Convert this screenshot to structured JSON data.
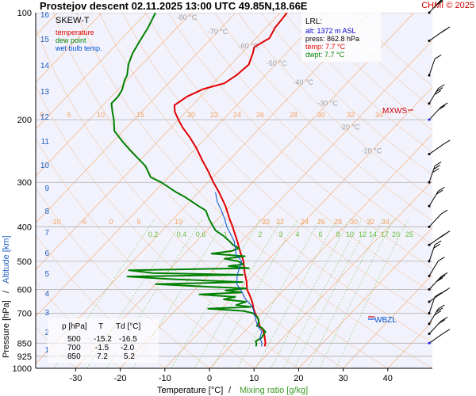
{
  "header": {
    "title": "Prostejov   descent   02.11.2025 13:00 UTC  49.85N,18.66E",
    "credit": "CHMI © 2025"
  },
  "legend": {
    "title": "SKEW-T",
    "items": [
      {
        "label": "temperature",
        "color": "#e00000"
      },
      {
        "label": "dew point",
        "color": "#008000"
      },
      {
        "label": "wet bulb temp.",
        "color": "#0050d0"
      }
    ]
  },
  "lrl": {
    "title": "LRL:",
    "alt": "alt: 1372 m ASL",
    "press": "press: 862.8 hPa",
    "temp": "temp: 7.7 °C",
    "dwpt": "dwpt: 7.7 °C"
  },
  "table": {
    "headers": [
      "p [hPa]",
      "T",
      "Td [°C]"
    ],
    "rows": [
      [
        "500",
        "-15.2",
        "-16.5"
      ],
      [
        "700",
        "-1.5",
        "-2.0"
      ],
      [
        "850",
        "7.2",
        "5.2"
      ]
    ]
  },
  "markers": {
    "mxws": "MXWS",
    "wbzl": "WBZL"
  },
  "axis_titles": {
    "x_temp": "Temperature [°C]",
    "x_sep": "/",
    "x_mix": "Mixing ratio [g/kg]",
    "y_press": "Pressure [hPa]",
    "y_sep": "/",
    "y_alt": "Altitude [km]"
  },
  "colors": {
    "background": "#f2f2fc",
    "temperature": "#e00000",
    "dewpoint": "#008000",
    "wetbulb": "#0050d0",
    "isotherm": "#f4a868",
    "dry_adiabat": "#f4a868",
    "mixing": "#88c860",
    "pressure_line": "#b0b0b0"
  },
  "chart_data": {
    "type": "line",
    "x_axis": {
      "label": "Temperature [°C]",
      "ticks": [
        -30,
        -20,
        -10,
        0,
        10,
        20,
        30,
        40
      ]
    },
    "y_axis": {
      "label": "Pressure [hPa]",
      "scale": "log",
      "ticks": [
        100,
        200,
        300,
        400,
        500,
        600,
        700,
        850,
        925,
        1000
      ],
      "range": [
        100,
        1000
      ]
    },
    "altitude_ticks_km": [
      1,
      2,
      3,
      4,
      5,
      6,
      7,
      8,
      9,
      10,
      11,
      12,
      13,
      14,
      15,
      16
    ],
    "isotherm_labels_top": [
      -80,
      -70,
      -60,
      -50,
      -40,
      -30,
      -20,
      -10
    ],
    "dry_adiabat_labels_200": [
      0,
      5,
      10,
      15,
      20,
      22,
      24,
      26,
      28,
      30,
      32,
      34
    ],
    "dry_adiabat_labels_380": [
      -10,
      -5,
      0,
      5,
      10,
      20,
      22,
      24,
      26,
      28,
      30,
      32,
      34
    ],
    "mixing_ratio_labels": [
      0.2,
      0.4,
      0.6,
      1,
      2,
      3,
      4,
      6,
      8,
      10,
      12,
      14,
      17,
      20,
      25
    ],
    "series": [
      {
        "name": "temperature",
        "points": [
          [
            868,
            7.7
          ],
          [
            850,
            7.2
          ],
          [
            810,
            5.4
          ],
          [
            780,
            3.8
          ],
          [
            760,
            2.2
          ],
          [
            730,
            0.6
          ],
          [
            700,
            -1.5
          ],
          [
            680,
            -2.8
          ],
          [
            650,
            -4.6
          ],
          [
            620,
            -6.8
          ],
          [
            600,
            -8.4
          ],
          [
            570,
            -10.2
          ],
          [
            540,
            -12.4
          ],
          [
            520,
            -13.8
          ],
          [
            500,
            -15.2
          ],
          [
            470,
            -18.0
          ],
          [
            440,
            -20.8
          ],
          [
            400,
            -25.0
          ],
          [
            380,
            -27.4
          ],
          [
            350,
            -31.0
          ],
          [
            320,
            -35.4
          ],
          [
            300,
            -38.8
          ],
          [
            280,
            -42.2
          ],
          [
            260,
            -46.0
          ],
          [
            240,
            -50.0
          ],
          [
            225,
            -53.5
          ],
          [
            210,
            -57.5
          ],
          [
            200,
            -60.0
          ],
          [
            190,
            -62.5
          ],
          [
            182,
            -64.0
          ],
          [
            172,
            -63.0
          ],
          [
            164,
            -61.0
          ],
          [
            158,
            -57.5
          ],
          [
            150,
            -56.5
          ],
          [
            140,
            -56.0
          ],
          [
            130,
            -57.5
          ],
          [
            125,
            -58.5
          ],
          [
            118,
            -57.0
          ],
          [
            110,
            -58.0
          ],
          [
            105,
            -58.2
          ],
          [
            100,
            -58.5
          ]
        ]
      },
      {
        "name": "dew point",
        "points": [
          [
            868,
            5.8
          ],
          [
            850,
            5.2
          ],
          [
            840,
            4.6
          ],
          [
            820,
            5.2
          ],
          [
            810,
            5.0
          ],
          [
            790,
            4.8
          ],
          [
            770,
            3.2
          ],
          [
            760,
            1.6
          ],
          [
            740,
            1.2
          ],
          [
            720,
            0.0
          ],
          [
            700,
            -2.0
          ],
          [
            690,
            -4.6
          ],
          [
            680,
            -13.0
          ],
          [
            672,
            -3.8
          ],
          [
            664,
            -7.5
          ],
          [
            650,
            -6.0
          ],
          [
            640,
            -11.5
          ],
          [
            630,
            -9.5
          ],
          [
            620,
            -18.0
          ],
          [
            612,
            -9.0
          ],
          [
            604,
            -13.0
          ],
          [
            596,
            -8.8
          ],
          [
            590,
            -17.5
          ],
          [
            580,
            -30.0
          ],
          [
            572,
            -11.0
          ],
          [
            562,
            -27.0
          ],
          [
            552,
            -38.0
          ],
          [
            546,
            -12.5
          ],
          [
            540,
            -33.0
          ],
          [
            530,
            -39.0
          ],
          [
            523,
            -12.5
          ],
          [
            516,
            -17.5
          ],
          [
            510,
            -14.5
          ],
          [
            500,
            -16.5
          ],
          [
            492,
            -20.0
          ],
          [
            484,
            -16.0
          ],
          [
            476,
            -24.0
          ],
          [
            468,
            -20.0
          ],
          [
            460,
            -19.0
          ],
          [
            450,
            -21.0
          ],
          [
            440,
            -22.5
          ],
          [
            425,
            -25.0
          ],
          [
            410,
            -28.0
          ],
          [
            395,
            -30.0
          ],
          [
            380,
            -32.0
          ],
          [
            360,
            -34.5
          ],
          [
            350,
            -37.0
          ],
          [
            330,
            -42.0
          ],
          [
            320,
            -45.0
          ],
          [
            300,
            -50.5
          ],
          [
            290,
            -54.0
          ],
          [
            270,
            -57.5
          ],
          [
            260,
            -60.0
          ],
          [
            245,
            -64.0
          ],
          [
            230,
            -68.0
          ],
          [
            215,
            -72.0
          ],
          [
            200,
            -74.5
          ],
          [
            190,
            -76.5
          ],
          [
            180,
            -78.5
          ],
          [
            172,
            -78.5
          ],
          [
            165,
            -79.0
          ],
          [
            155,
            -80.5
          ],
          [
            150,
            -81.0
          ],
          [
            140,
            -83.0
          ],
          [
            130,
            -84.5
          ],
          [
            120,
            -85.5
          ],
          [
            110,
            -86.5
          ],
          [
            100,
            -88.0
          ]
        ]
      },
      {
        "name": "wet bulb temp.",
        "points": [
          [
            868,
            7.0
          ],
          [
            850,
            6.4
          ],
          [
            820,
            4.8
          ],
          [
            790,
            4.0
          ],
          [
            760,
            1.8
          ],
          [
            730,
            0.0
          ],
          [
            700,
            -1.7
          ],
          [
            670,
            -3.6
          ],
          [
            640,
            -6.6
          ],
          [
            610,
            -9.0
          ],
          [
            580,
            -11.8
          ],
          [
            550,
            -13.5
          ],
          [
            520,
            -14.8
          ],
          [
            500,
            -15.6
          ],
          [
            480,
            -18.2
          ],
          [
            460,
            -19.8
          ],
          [
            440,
            -21.5
          ],
          [
            420,
            -23.8
          ],
          [
            400,
            -26.3
          ],
          [
            380,
            -28.5
          ],
          [
            360,
            -31.0
          ],
          [
            340,
            -33.8
          ],
          [
            320,
            -36.2
          ]
        ]
      }
    ],
    "wind_levels": [
      850,
      800,
      750,
      700,
      650,
      600,
      550,
      500,
      450,
      400,
      350,
      300,
      250,
      200,
      180,
      150,
      120,
      100
    ]
  }
}
